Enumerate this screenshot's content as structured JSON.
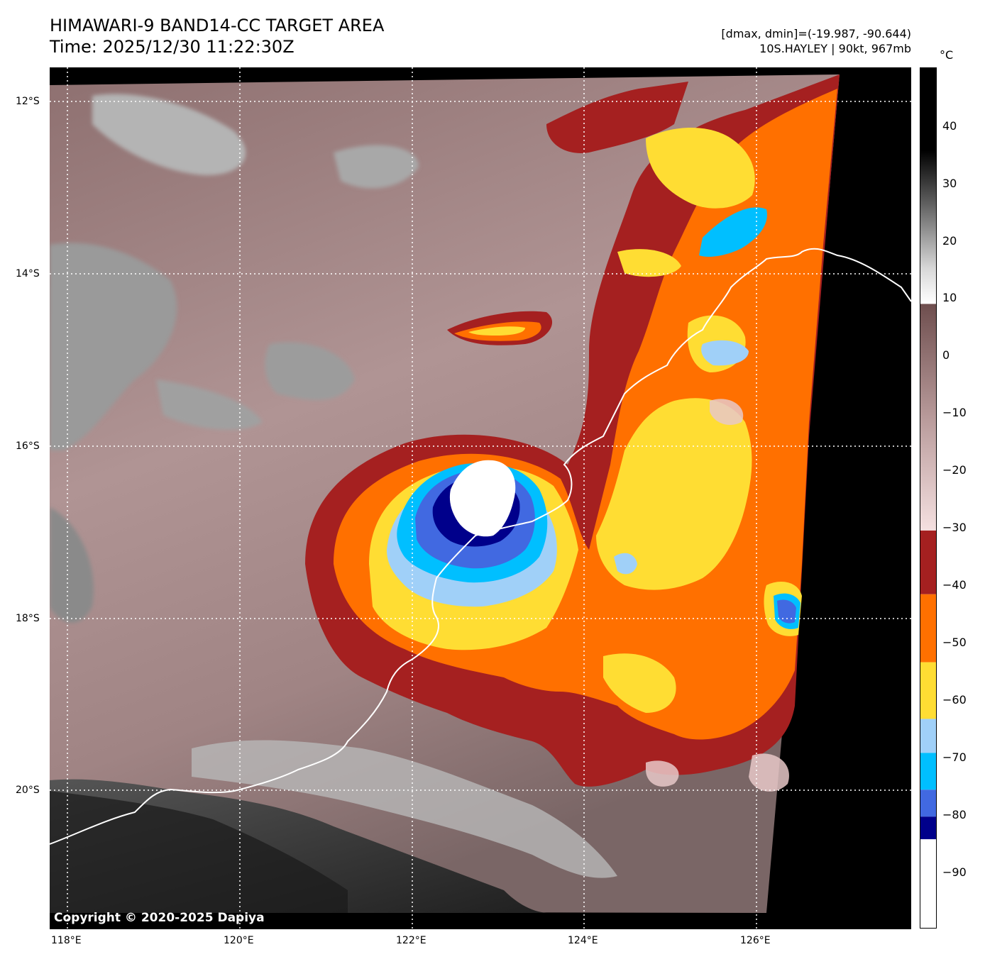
{
  "header": {
    "title": "HIMAWARI-9 BAND14-CC TARGET AREA",
    "time": "Time: 2025/12/30 11:22:30Z",
    "range": "[dmax, dmin]=(-19.987, -90.644)",
    "storm": "10S.HAYLEY | 90kt, 967mb"
  },
  "map": {
    "lat_labels": [
      "12°S",
      "14°S",
      "16°S",
      "18°S",
      "20°S"
    ],
    "lon_labels": [
      "118°E",
      "120°E",
      "122°E",
      "124°E",
      "126°E"
    ],
    "copyright": "Copyright © 2020-2025 Dapiya"
  },
  "colorbar": {
    "unit": "°C",
    "tick_labels": [
      "40",
      "30",
      "20",
      "10",
      "0",
      "−10",
      "−20",
      "−30",
      "−40",
      "−50",
      "−60",
      "−70",
      "−80",
      "−90"
    ],
    "colors": {
      "white": "#ffffff",
      "navy": "#00008b",
      "royal_blue": "#4169e1",
      "deep_sky_blue": "#00bfff",
      "light_blue": "#a0d0f8",
      "yellow": "#ffdd33",
      "orange": "#ff7000",
      "dark_red": "#a52020",
      "pink": "#f5d2d2",
      "brown_gray": "#6e4e4e"
    }
  }
}
